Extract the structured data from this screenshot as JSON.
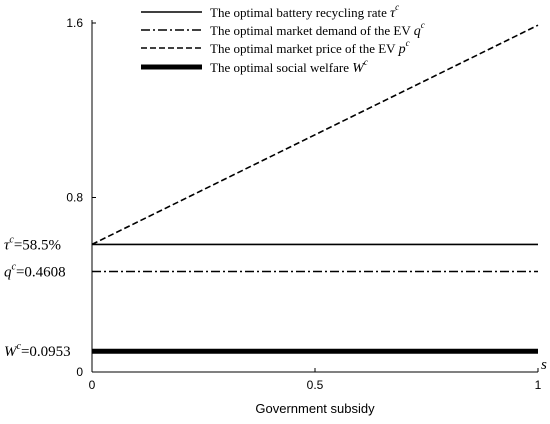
{
  "chart_data": {
    "type": "line",
    "xlabel": "Government subsidy",
    "x_axis_symbol": "s",
    "x_ticks": [
      "0",
      "0.5",
      "1"
    ],
    "y_ticks": [
      "0",
      "0.8",
      "1.6"
    ],
    "xlim": [
      0,
      1
    ],
    "ylim": [
      0,
      1.6
    ],
    "grid": false,
    "legend_position": "top",
    "series": [
      {
        "name": "The optimal battery recycling rate",
        "symbol": "τ",
        "sup": "c",
        "style": "solid",
        "x": [
          0,
          1
        ],
        "values": [
          0.585,
          0.585
        ]
      },
      {
        "name": "The optimal market demand of the EV",
        "symbol": "q",
        "sup": "c",
        "style": "dashdot",
        "x": [
          0,
          1
        ],
        "values": [
          0.4608,
          0.4608
        ]
      },
      {
        "name": "The optimal market price of the EV",
        "symbol": "p",
        "sup": "c",
        "style": "dashed",
        "x": [
          0,
          1
        ],
        "values": [
          0.585,
          1.59
        ]
      },
      {
        "name": "The optimal social welfare",
        "symbol": "W",
        "sup": "c",
        "style": "thick",
        "x": [
          0,
          1
        ],
        "values": [
          0.0953,
          0.0953
        ]
      }
    ],
    "annotations": [
      {
        "symbol": "τ",
        "sup": "c",
        "text": "=58.5%",
        "y": 0.585
      },
      {
        "symbol": "q",
        "sup": "c",
        "text": "=0.4608",
        "y": 0.4608
      },
      {
        "symbol": "W",
        "sup": "c",
        "text": "=0.0953",
        "y": 0.0953
      }
    ]
  }
}
